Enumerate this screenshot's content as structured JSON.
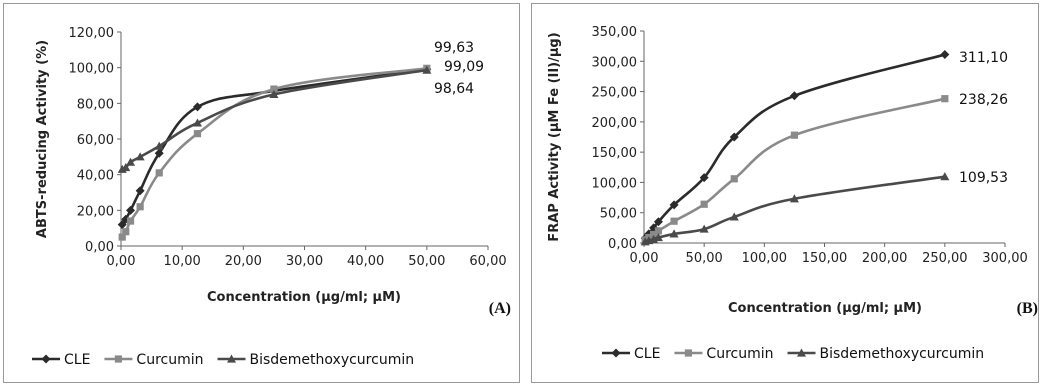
{
  "chart_data": [
    {
      "type": "line",
      "panel_label": "(A)",
      "xlabel": "Concentration (µg/ml; µM)",
      "ylabel": "ABTS-reducing Activity (%)",
      "xlim": [
        0,
        60
      ],
      "ylim": [
        0,
        120
      ],
      "x_ticks": [
        "0,00",
        "10,00",
        "20,00",
        "30,00",
        "40,00",
        "50,00",
        "60,00"
      ],
      "y_ticks": [
        "0,00",
        "20,00",
        "40,00",
        "60,00",
        "80,00",
        "100,00",
        "120,00"
      ],
      "grid": false,
      "legend_position": "bottom",
      "series": [
        {
          "name": "CLE",
          "color": "#2b2b2b",
          "marker": "diamond",
          "x": [
            0.2,
            0.78,
            1.56,
            3.13,
            6.25,
            12.5,
            25,
            50
          ],
          "y": [
            12,
            15,
            20,
            31,
            52,
            78,
            87,
            99.09
          ]
        },
        {
          "name": "Curcumin",
          "color": "#8a8a8a",
          "marker": "square",
          "x": [
            0.2,
            0.78,
            1.56,
            3.13,
            6.25,
            12.5,
            25,
            50
          ],
          "y": [
            5,
            8,
            14,
            22,
            41,
            63,
            88,
            99.63
          ]
        },
        {
          "name": "Bisdemethoxycurcumin",
          "color": "#4a4a4a",
          "marker": "triangle",
          "x": [
            0.2,
            0.78,
            1.56,
            3.13,
            6.25,
            12.5,
            25,
            50
          ],
          "y": [
            43,
            44,
            47,
            50,
            56,
            69,
            85,
            98.64
          ]
        }
      ],
      "annotations": [
        "99,63",
        "99,09",
        "98,64"
      ]
    },
    {
      "type": "line",
      "panel_label": "(B)",
      "xlabel": "Concentration (µg/ml; µM)",
      "ylabel": "FRAP Activity (µM Fe (II)/µg)",
      "xlim": [
        0,
        300
      ],
      "ylim": [
        0,
        350
      ],
      "x_ticks": [
        "0,00",
        "50,00",
        "100,00",
        "150,00",
        "200,00",
        "250,00",
        "300,00"
      ],
      "y_ticks": [
        "0,00",
        "50,00",
        "100,00",
        "150,00",
        "200,00",
        "250,00",
        "300,00",
        "350,00"
      ],
      "grid": false,
      "legend_position": "bottom",
      "series": [
        {
          "name": "CLE",
          "color": "#2b2b2b",
          "marker": "diamond",
          "x": [
            1,
            4,
            8,
            12,
            25,
            50,
            75,
            125,
            250
          ],
          "y": [
            8,
            15,
            25,
            35,
            63,
            108,
            175,
            243,
            311.1
          ]
        },
        {
          "name": "Curcumin",
          "color": "#8a8a8a",
          "marker": "square",
          "x": [
            1,
            4,
            8,
            12,
            25,
            50,
            75,
            125,
            250
          ],
          "y": [
            5,
            9,
            14,
            20,
            36,
            64,
            106,
            178,
            238.26
          ]
        },
        {
          "name": "Bisdemethoxycurcumin",
          "color": "#4a4a4a",
          "marker": "triangle",
          "x": [
            1,
            4,
            8,
            12,
            25,
            50,
            75,
            125,
            250
          ],
          "y": [
            2,
            4,
            6,
            9,
            15,
            23,
            43,
            73,
            109.53
          ]
        }
      ],
      "annotations": [
        "311,10",
        "238,26",
        "109,53"
      ]
    }
  ]
}
